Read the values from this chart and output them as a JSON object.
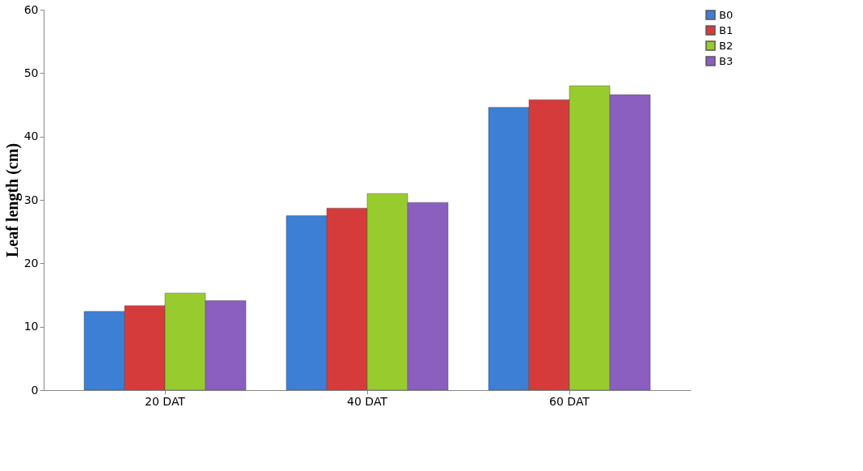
{
  "chart_data": {
    "type": "bar",
    "ylabel": "Leaf length (cm)",
    "categories": [
      "20 DAT",
      "40 DAT",
      "60 DAT"
    ],
    "series": [
      {
        "name": "B0",
        "color": "#3c7fd4",
        "values": [
          12.4,
          27.5,
          44.6
        ]
      },
      {
        "name": "B1",
        "color": "#d63b3b",
        "values": [
          13.3,
          28.7,
          45.8
        ]
      },
      {
        "name": "B2",
        "color": "#98cc2e",
        "values": [
          15.3,
          31.0,
          48.0
        ]
      },
      {
        "name": "B3",
        "color": "#8a5fc0",
        "values": [
          14.1,
          29.6,
          46.6
        ]
      }
    ],
    "ylim": [
      0,
      60
    ],
    "yticks": [
      0,
      10,
      20,
      30,
      40,
      50,
      60
    ],
    "grid": false,
    "legend": "right"
  }
}
